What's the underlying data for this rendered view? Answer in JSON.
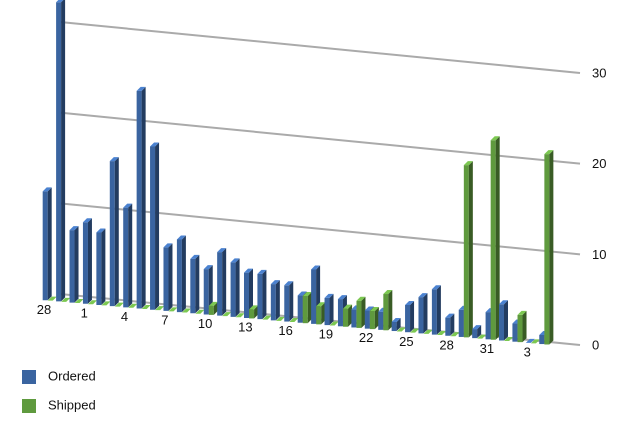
{
  "chart_data": {
    "type": "bar3d",
    "categories": [
      "28",
      null,
      null,
      "1",
      null,
      null,
      "4",
      null,
      null,
      "7",
      null,
      null,
      "10",
      null,
      null,
      "13",
      null,
      null,
      "16",
      null,
      null,
      "19",
      null,
      null,
      "22",
      null,
      null,
      "25",
      null,
      null,
      "28",
      null,
      null,
      "31",
      null,
      null,
      "3",
      null
    ],
    "series": [
      {
        "name": "Ordered",
        "color": "#3a64a0",
        "values": [
          12,
          33,
          8,
          9,
          8,
          16,
          11,
          24,
          18,
          7,
          8,
          6,
          5,
          7,
          6,
          5,
          5,
          4,
          4,
          3,
          6,
          3,
          3,
          2,
          2,
          2,
          1,
          3,
          4,
          5,
          2,
          3,
          1,
          3,
          4,
          2,
          0,
          1
        ]
      },
      {
        "name": "Shipped",
        "color": "#5f9a3e",
        "values": [
          0,
          0,
          0,
          0,
          0,
          0,
          0,
          0,
          0,
          0,
          0,
          0,
          1,
          0,
          0,
          1,
          0,
          0,
          0,
          3,
          2,
          0,
          2,
          3,
          2,
          4,
          0,
          0,
          0,
          0,
          0,
          19,
          0,
          22,
          0,
          3,
          0,
          21
        ]
      }
    ],
    "ylim": [
      0,
      30
    ],
    "yticks": [
      0,
      10,
      20,
      30
    ],
    "grid": true,
    "legend": "bottom-left"
  }
}
